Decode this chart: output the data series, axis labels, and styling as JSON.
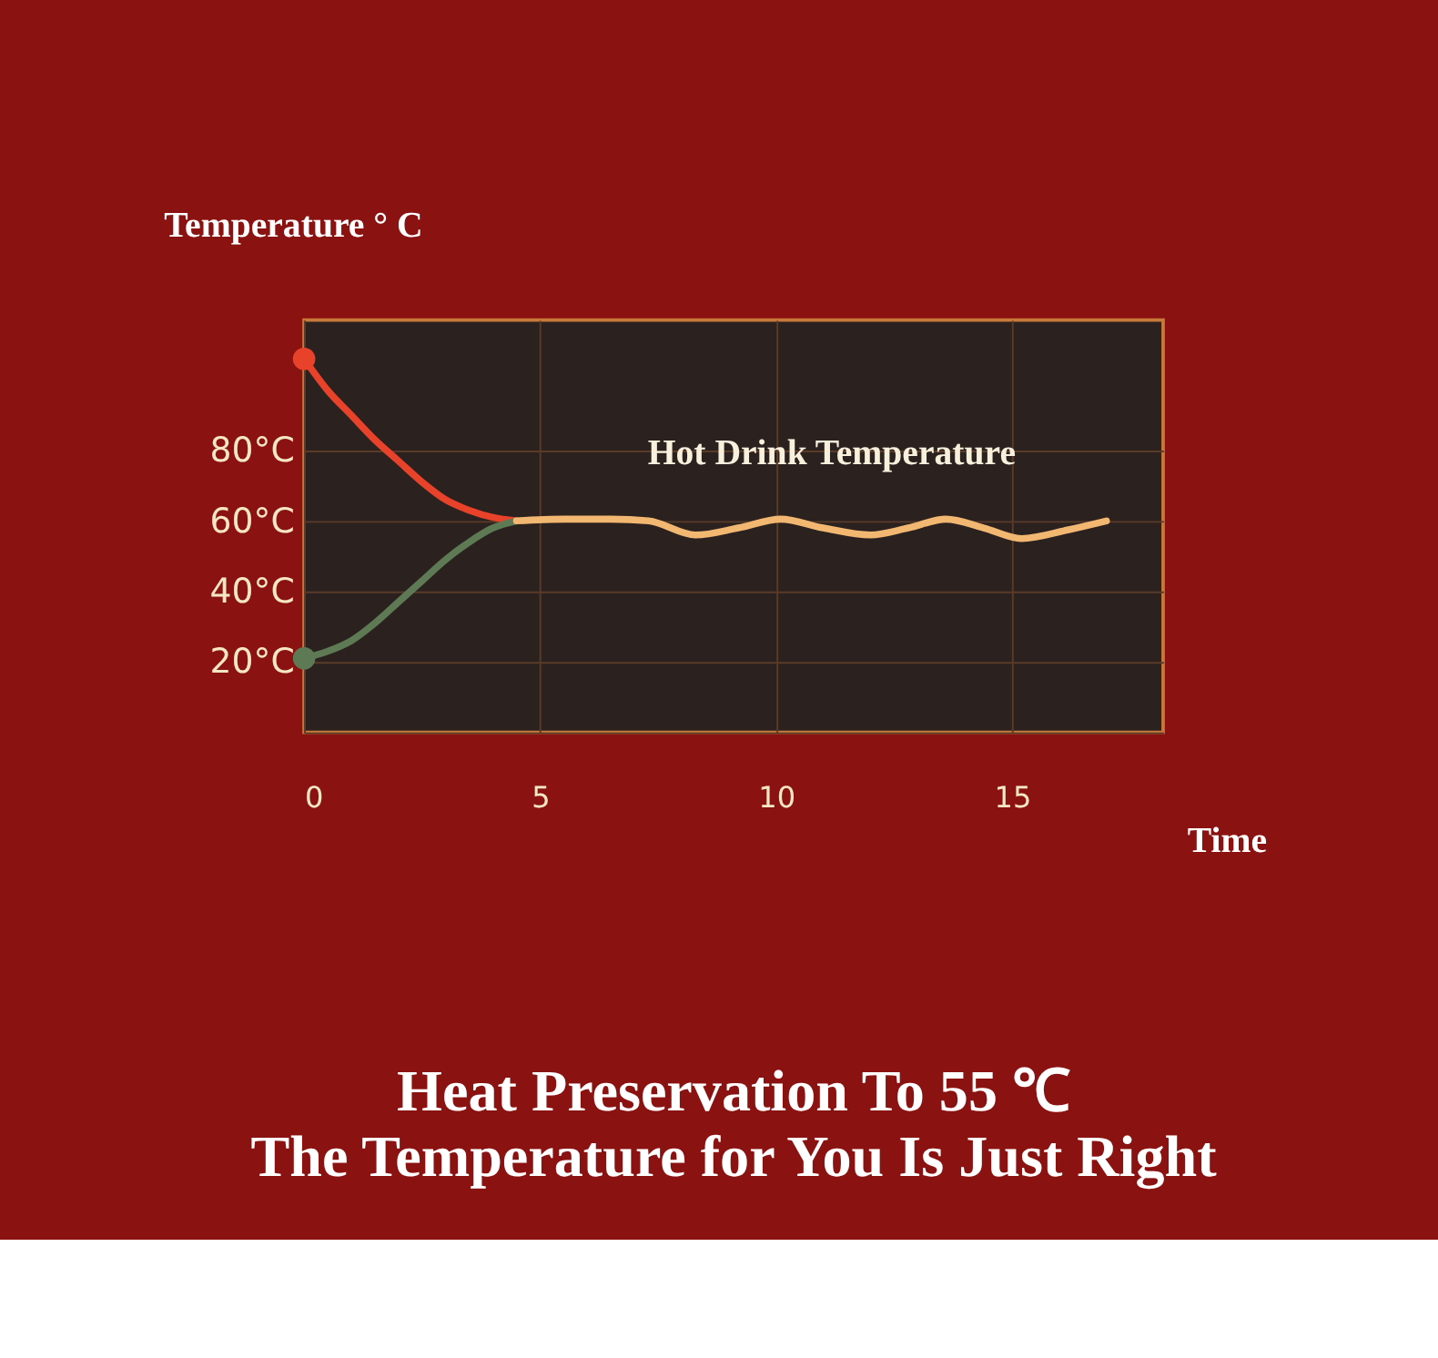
{
  "chart_data": {
    "type": "line",
    "title": "Heat Preservation To 55 ℃",
    "subtitle": "The Temperature for You Is Just Right",
    "ylabel": "Temperature ° C",
    "xlabel": "Time",
    "xlim": [
      0,
      18.2
    ],
    "xticks": [
      0,
      5,
      10,
      15
    ],
    "ylim": [
      0,
      117
    ],
    "yticks": [
      {
        "value": 20,
        "label": "20°C"
      },
      {
        "value": 40,
        "label": "40°C"
      },
      {
        "value": 60,
        "label": "60°C"
      },
      {
        "value": 80,
        "label": "80°C"
      }
    ],
    "grid": true,
    "line_style": "solid",
    "marker": "none",
    "series": [
      {
        "color": "#e8432a",
        "x": [
          0,
          0.5,
          1,
          1.5,
          2,
          2.5,
          3,
          3.5,
          4,
          4.5
        ],
        "values": [
          106,
          97,
          90,
          83,
          77,
          71,
          66,
          63,
          61,
          60
        ]
      },
      {
        "color": "#5e7a55",
        "x": [
          0,
          0.5,
          1,
          1.5,
          2,
          2.5,
          3,
          3.5,
          4,
          4.5
        ],
        "values": [
          21,
          23,
          26,
          31,
          37,
          43,
          49,
          54,
          58,
          60
        ]
      },
      {
        "name": "Hot Drink Temperature",
        "color": "#f2b872",
        "x": [
          4.5,
          5.5,
          6.5,
          7.3,
          8.3,
          9.2,
          10.1,
          11,
          12,
          12.8,
          13.6,
          14.4,
          15.2,
          16.2,
          17
        ],
        "values": [
          60,
          60.5,
          60.5,
          60,
          56,
          58,
          60.5,
          58,
          56,
          58,
          60.5,
          58,
          55,
          57.5,
          60
        ]
      },
      {
        "type": "scatter",
        "marker": "circle",
        "color": "#e8432a",
        "x": [
          0
        ],
        "values": [
          106
        ]
      },
      {
        "type": "scatter",
        "marker": "circle",
        "color": "#5e7a55",
        "x": [
          0
        ],
        "values": [
          21
        ]
      }
    ]
  }
}
